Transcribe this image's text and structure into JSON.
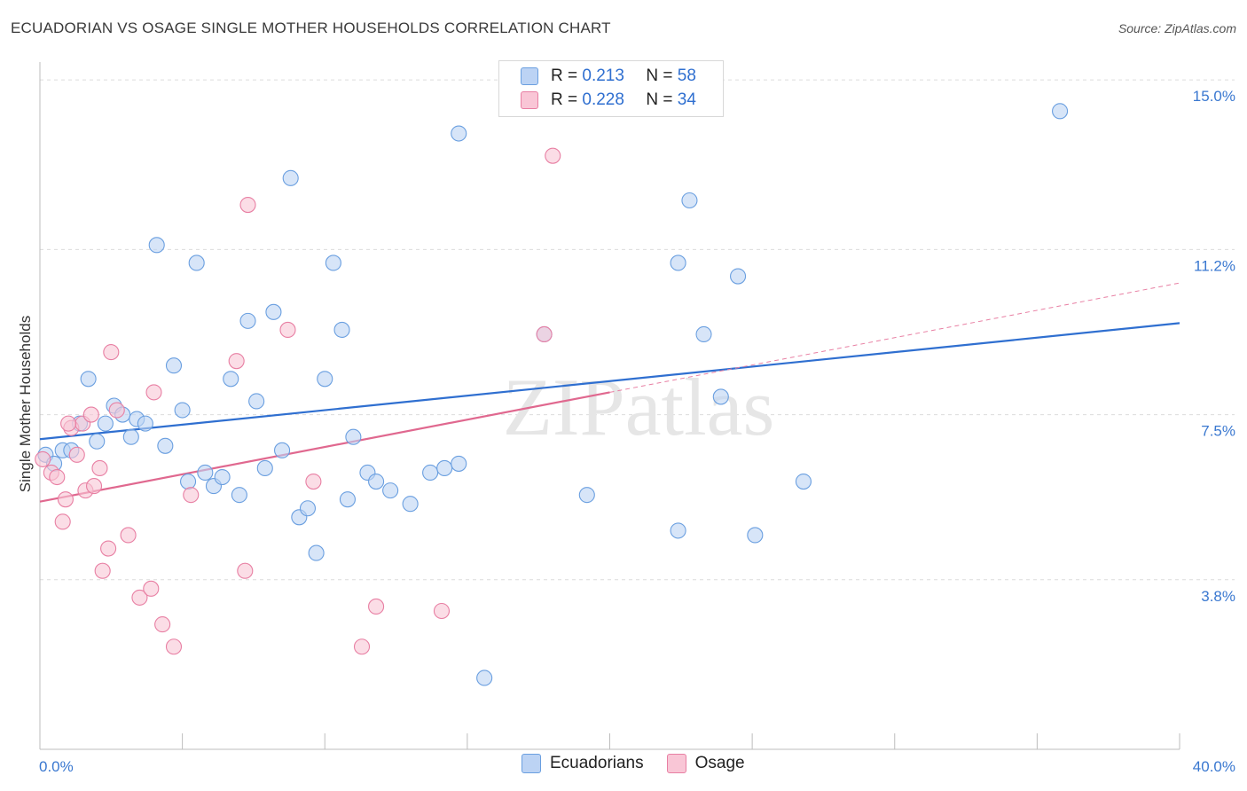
{
  "title": "ECUADORIAN VS OSAGE SINGLE MOTHER HOUSEHOLDS CORRELATION CHART",
  "source": "Source: ZipAtlas.com",
  "watermark": "ZIPatlas",
  "legend": {
    "r_label": "R =",
    "n_label": "N =",
    "rows": [
      {
        "name": "Ecuadorians",
        "r": "0.213",
        "n": "58",
        "color": "#6a9fe0",
        "fill": "#bcd3f4"
      },
      {
        "name": "Osage",
        "r": "0.228",
        "n": "34",
        "color": "#e87fa3",
        "fill": "#f9c6d6"
      }
    ]
  },
  "chart_data": {
    "type": "scatter",
    "title": "ECUADORIAN VS OSAGE SINGLE MOTHER HOUSEHOLDS CORRELATION CHART",
    "xlabel": "",
    "ylabel": "Single Mother Households",
    "xlim": [
      0,
      40
    ],
    "ylim": [
      0,
      15.4
    ],
    "x_tick_labels": [
      "0.0%",
      "40.0%"
    ],
    "y_ticks": [
      3.8,
      7.5,
      11.2,
      15.0
    ],
    "y_tick_labels": [
      "3.8%",
      "7.5%",
      "11.2%",
      "15.0%"
    ],
    "grid": true,
    "series": [
      {
        "name": "Ecuadorians",
        "color": "#6a9fe0",
        "fill": "#bcd3f4",
        "trend": {
          "x0": 0,
          "y0": 6.95,
          "x1": 40,
          "y1": 9.55
        },
        "points": [
          [
            0.2,
            6.6
          ],
          [
            0.5,
            6.4
          ],
          [
            0.8,
            6.7
          ],
          [
            1.1,
            6.7
          ],
          [
            1.4,
            7.3
          ],
          [
            1.7,
            8.3
          ],
          [
            2.0,
            6.9
          ],
          [
            2.3,
            7.3
          ],
          [
            2.6,
            7.7
          ],
          [
            2.9,
            7.5
          ],
          [
            3.2,
            7.0
          ],
          [
            3.4,
            7.4
          ],
          [
            3.7,
            7.3
          ],
          [
            4.1,
            11.3
          ],
          [
            4.4,
            6.8
          ],
          [
            4.7,
            8.6
          ],
          [
            5.0,
            7.6
          ],
          [
            5.2,
            6.0
          ],
          [
            5.5,
            10.9
          ],
          [
            5.8,
            6.2
          ],
          [
            6.1,
            5.9
          ],
          [
            6.4,
            6.1
          ],
          [
            6.7,
            8.3
          ],
          [
            7.0,
            5.7
          ],
          [
            7.3,
            9.6
          ],
          [
            7.6,
            7.8
          ],
          [
            7.9,
            6.3
          ],
          [
            8.2,
            9.8
          ],
          [
            8.5,
            6.7
          ],
          [
            8.8,
            12.8
          ],
          [
            9.1,
            5.2
          ],
          [
            9.4,
            5.4
          ],
          [
            9.7,
            4.4
          ],
          [
            10.0,
            8.3
          ],
          [
            10.3,
            10.9
          ],
          [
            10.6,
            9.4
          ],
          [
            10.8,
            5.6
          ],
          [
            11.0,
            7.0
          ],
          [
            11.5,
            6.2
          ],
          [
            11.8,
            6.0
          ],
          [
            12.3,
            5.8
          ],
          [
            13.0,
            5.5
          ],
          [
            13.7,
            6.2
          ],
          [
            14.2,
            6.3
          ],
          [
            14.7,
            6.4
          ],
          [
            14.7,
            13.8
          ],
          [
            15.6,
            1.6
          ],
          [
            17.7,
            9.3
          ],
          [
            19.2,
            5.7
          ],
          [
            22.4,
            4.9
          ],
          [
            22.4,
            10.9
          ],
          [
            22.8,
            12.3
          ],
          [
            23.3,
            9.3
          ],
          [
            23.9,
            7.9
          ],
          [
            24.5,
            10.6
          ],
          [
            25.1,
            4.8
          ],
          [
            26.8,
            6.0
          ],
          [
            35.8,
            14.3
          ]
        ]
      },
      {
        "name": "Osage",
        "color": "#e87fa3",
        "fill": "#f9c6d6",
        "trend": {
          "x0": 0,
          "y0": 5.55,
          "x1": 20,
          "y1": 8.0
        },
        "trend_extension": {
          "x0": 20,
          "y0": 8.0,
          "x1": 40,
          "y1": 10.45
        },
        "points": [
          [
            0.1,
            6.5
          ],
          [
            0.4,
            6.2
          ],
          [
            0.6,
            6.1
          ],
          [
            0.8,
            5.1
          ],
          [
            0.9,
            5.6
          ],
          [
            1.1,
            7.2
          ],
          [
            1.3,
            6.6
          ],
          [
            1.5,
            7.3
          ],
          [
            1.6,
            5.8
          ],
          [
            1.8,
            7.5
          ],
          [
            1.9,
            5.9
          ],
          [
            2.1,
            6.3
          ],
          [
            2.2,
            4.0
          ],
          [
            2.4,
            4.5
          ],
          [
            2.5,
            8.9
          ],
          [
            2.7,
            7.6
          ],
          [
            3.1,
            4.8
          ],
          [
            3.5,
            3.4
          ],
          [
            3.9,
            3.6
          ],
          [
            4.0,
            8.0
          ],
          [
            4.3,
            2.8
          ],
          [
            4.7,
            2.3
          ],
          [
            5.3,
            5.7
          ],
          [
            6.9,
            8.7
          ],
          [
            7.2,
            4.0
          ],
          [
            7.3,
            12.2
          ],
          [
            8.7,
            9.4
          ],
          [
            9.6,
            6.0
          ],
          [
            11.3,
            2.3
          ],
          [
            11.8,
            3.2
          ],
          [
            17.7,
            9.3
          ],
          [
            18.0,
            13.3
          ],
          [
            14.1,
            3.1
          ],
          [
            1.0,
            7.3
          ]
        ]
      }
    ]
  }
}
